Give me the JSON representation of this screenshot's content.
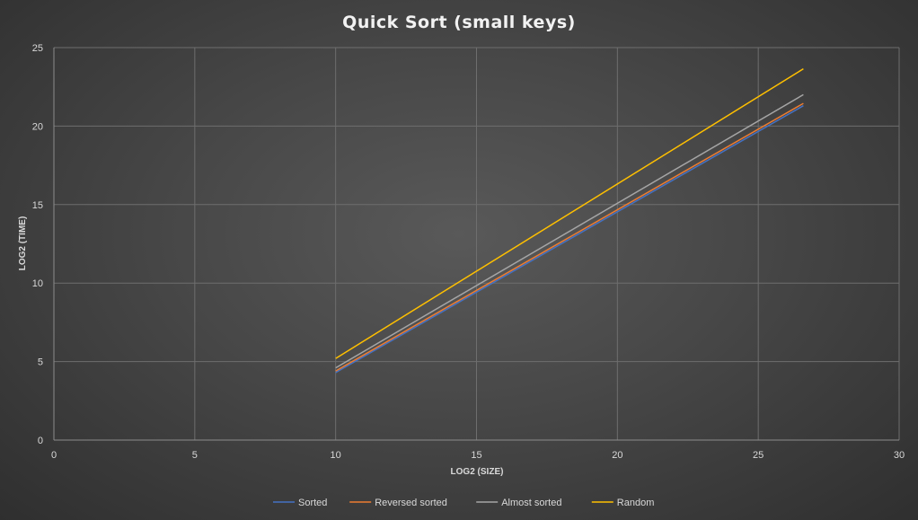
{
  "chart_data": {
    "type": "line",
    "title": "Quick Sort (small keys)",
    "xlabel": "LOG2 (SIZE)",
    "ylabel": "LOG2 (TIME)",
    "xlim": [
      0,
      30
    ],
    "ylim": [
      0,
      25
    ],
    "xticks": [
      0,
      5,
      10,
      15,
      20,
      25,
      30
    ],
    "yticks": [
      0,
      5,
      10,
      15,
      20,
      25
    ],
    "grid": true,
    "legend_position": "bottom",
    "series": [
      {
        "name": "Sorted",
        "color": "#4472c4",
        "x": [
          10,
          26.6
        ],
        "y": [
          4.3,
          21.3
        ]
      },
      {
        "name": "Reversed sorted",
        "color": "#ed7d31",
        "x": [
          10,
          26.6
        ],
        "y": [
          4.4,
          21.45
        ]
      },
      {
        "name": "Almost sorted",
        "color": "#a5a5a5",
        "x": [
          10,
          26.6
        ],
        "y": [
          4.6,
          22.0
        ]
      },
      {
        "name": "Random",
        "color": "#ffc000",
        "x": [
          10,
          26.6
        ],
        "y": [
          5.2,
          23.65
        ]
      }
    ]
  }
}
